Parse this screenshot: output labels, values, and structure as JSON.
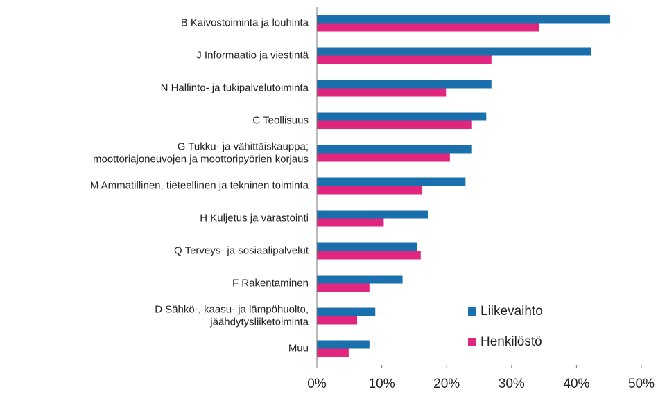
{
  "chart_data": {
    "type": "hbar",
    "categories": [
      "B  Kaivostoiminta ja louhinta",
      "J  Informaatio ja viestintä",
      "N  Hallinto- ja tukipalvelutoiminta",
      "C  Teollisuus",
      "G  Tukku- ja vähittäiskauppa;\nmoottoriajoneuvojen ja moottoripyörien korjaus",
      "M  Ammatillinen, tieteellinen ja tekninen toiminta",
      "H  Kuljetus ja varastointi",
      "Q  Terveys- ja sosiaalipalvelut",
      "F  Rakentaminen",
      "D  Sähkö-, kaasu- ja lämpöhuolto,\njäähdytysliiketoiminta",
      "Muu"
    ],
    "series": [
      {
        "name": "Liikevaihto",
        "color": "#1a6fad",
        "values": [
          45.2,
          42.2,
          26.9,
          26.1,
          23.9,
          22.9,
          17.1,
          15.4,
          13.2,
          9.0,
          8.1
        ]
      },
      {
        "name": "Henkilöstö",
        "color": "#e0267e",
        "values": [
          34.2,
          26.9,
          19.9,
          23.9,
          20.5,
          16.2,
          10.3,
          16.0,
          8.1,
          6.2,
          4.9
        ]
      }
    ],
    "xlim": [
      0,
      50
    ],
    "xticks": [
      {
        "value": 0,
        "label": "0%"
      },
      {
        "value": 10,
        "label": "10%"
      },
      {
        "value": 20,
        "label": "20%"
      },
      {
        "value": 30,
        "label": "30%"
      },
      {
        "value": 40,
        "label": "40%"
      },
      {
        "value": 50,
        "label": "50%"
      }
    ],
    "grid": false,
    "legend": "lower right"
  }
}
